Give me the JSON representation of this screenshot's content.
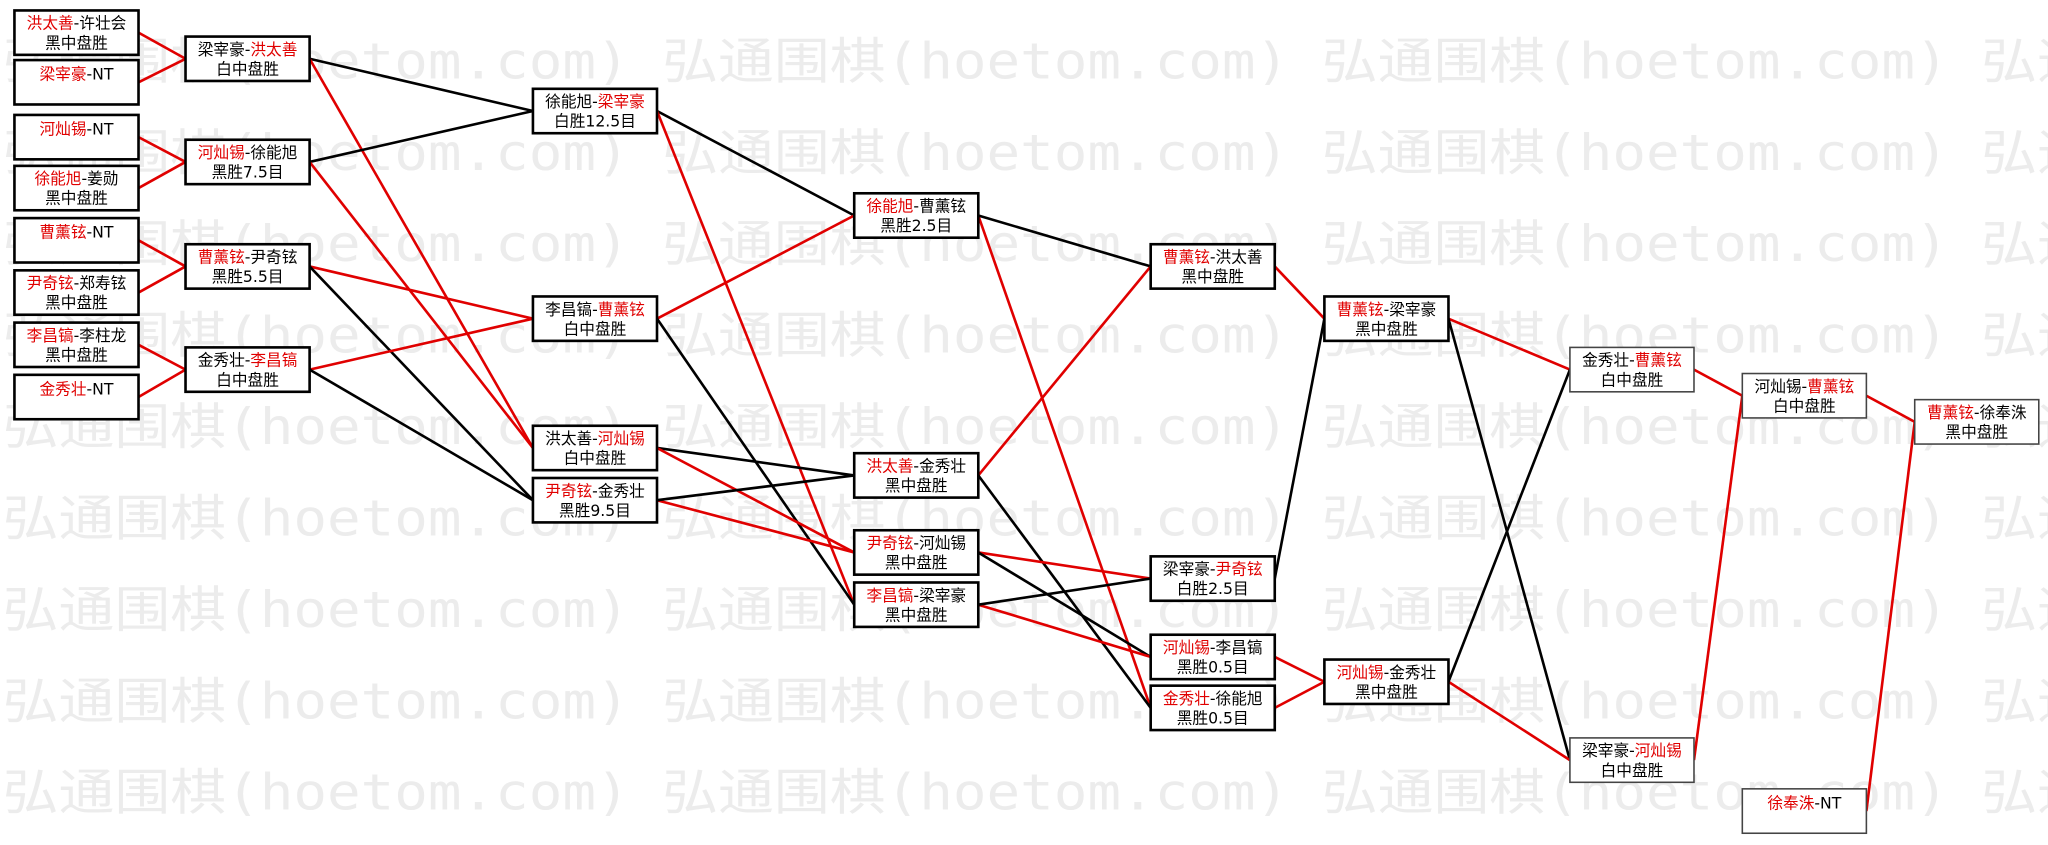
{
  "watermark": "弘通围棋(hoetom.com)",
  "separator": "-",
  "nodes": [
    {
      "players": [
        "洪太善",
        "许壮会"
      ],
      "winner": 0,
      "result": "黑中盘胜"
    },
    {
      "players": [
        "梁宰豪",
        "NT"
      ],
      "winner": 0
    },
    {
      "players": [
        "河灿锡",
        "NT"
      ],
      "winner": 0
    },
    {
      "players": [
        "徐能旭",
        "姜勋"
      ],
      "winner": 0,
      "result": "黑中盘胜"
    },
    {
      "players": [
        "曹薰铉",
        "NT"
      ],
      "winner": 0
    },
    {
      "players": [
        "尹奇铉",
        "郑寿铉"
      ],
      "winner": 0,
      "result": "黑中盘胜"
    },
    {
      "players": [
        "李昌镐",
        "李柱龙"
      ],
      "winner": 0,
      "result": "黑中盘胜"
    },
    {
      "players": [
        "金秀壮",
        "NT"
      ],
      "winner": 0
    },
    {
      "players": [
        "梁宰豪",
        "洪太善"
      ],
      "winner": 1,
      "result": "白中盘胜"
    },
    {
      "players": [
        "河灿锡",
        "徐能旭"
      ],
      "winner": 0,
      "result": "黑胜7.5目"
    },
    {
      "players": [
        "曹薰铉",
        "尹奇铉"
      ],
      "winner": 0,
      "result": "黑胜5.5目"
    },
    {
      "players": [
        "金秀壮",
        "李昌镐"
      ],
      "winner": 1,
      "result": "白中盘胜"
    },
    {
      "players": [
        "徐能旭",
        "梁宰豪"
      ],
      "winner": 1,
      "result": "白胜12.5目"
    },
    {
      "players": [
        "李昌镐",
        "曹薰铉"
      ],
      "winner": 1,
      "result": "白中盘胜"
    },
    {
      "players": [
        "洪太善",
        "河灿锡"
      ],
      "winner": 1,
      "result": "白中盘胜"
    },
    {
      "players": [
        "尹奇铉",
        "金秀壮"
      ],
      "winner": 0,
      "result": "黑胜9.5目"
    },
    {
      "players": [
        "徐能旭",
        "曹薰铉"
      ],
      "winner": 0,
      "result": "黑胜2.5目"
    },
    {
      "players": [
        "洪太善",
        "金秀壮"
      ],
      "winner": 0,
      "result": "黑中盘胜"
    },
    {
      "players": [
        "尹奇铉",
        "河灿锡"
      ],
      "winner": 0,
      "result": "黑中盘胜"
    },
    {
      "players": [
        "李昌镐",
        "梁宰豪"
      ],
      "winner": 0,
      "result": "黑中盘胜"
    },
    {
      "players": [
        "曹薰铉",
        "洪太善"
      ],
      "winner": 0,
      "result": "黑中盘胜"
    },
    {
      "players": [
        "梁宰豪",
        "尹奇铉"
      ],
      "winner": 1,
      "result": "白胜2.5目"
    },
    {
      "players": [
        "河灿锡",
        "李昌镐"
      ],
      "winner": 0,
      "result": "黑胜0.5目"
    },
    {
      "players": [
        "金秀壮",
        "徐能旭"
      ],
      "winner": 0,
      "result": "黑胜0.5目"
    },
    {
      "players": [
        "曹薰铉",
        "梁宰豪"
      ],
      "winner": 0,
      "result": "黑中盘胜"
    },
    {
      "players": [
        "河灿锡",
        "金秀壮"
      ],
      "winner": 0,
      "result": "黑中盘胜"
    },
    {
      "players": [
        "金秀壮",
        "曹薰铉"
      ],
      "winner": 1,
      "result": "白中盘胜"
    },
    {
      "players": [
        "梁宰豪",
        "河灿锡"
      ],
      "winner": 1,
      "result": "白中盘胜"
    },
    {
      "players": [
        "河灿锡",
        "曹薰铉"
      ],
      "winner": 1,
      "result": "白中盘胜"
    },
    {
      "players": [
        "徐奉洙",
        "NT"
      ],
      "winner": 0
    },
    {
      "players": [
        "曹薰铉",
        "徐奉洙"
      ],
      "winner": 0,
      "result": "黑中盘胜"
    }
  ]
}
